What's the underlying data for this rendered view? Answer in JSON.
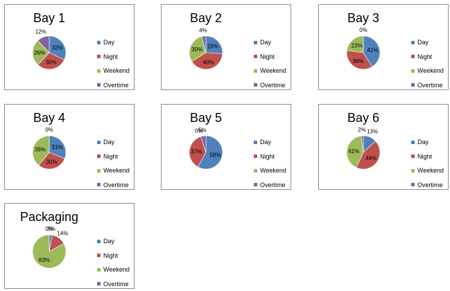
{
  "colors": {
    "Day": "#4f81bd",
    "Night": "#c0504d",
    "Weekend": "#9bbb59",
    "Overtime": "#8064a2"
  },
  "chart_data": [
    {
      "type": "pie",
      "title": "Bay 1",
      "categories": [
        "Day",
        "Night",
        "Weekend",
        "Overtime"
      ],
      "values": [
        32,
        30,
        26,
        12
      ],
      "labels": [
        "32%",
        "30%",
        "26%",
        "12%"
      ]
    },
    {
      "type": "pie",
      "title": "Bay 2",
      "categories": [
        "Day",
        "Night",
        "Weekend",
        "Overtime"
      ],
      "values": [
        26,
        40,
        30,
        4
      ],
      "labels": [
        "26%",
        "40%",
        "30%",
        "4%"
      ]
    },
    {
      "type": "pie",
      "title": "Bay 3",
      "categories": [
        "Day",
        "Night",
        "Weekend",
        "Overtime"
      ],
      "values": [
        41,
        36,
        23,
        0
      ],
      "labels": [
        "41%",
        "36%",
        "23%",
        "0%"
      ]
    },
    {
      "type": "pie",
      "title": "Bay 4",
      "categories": [
        "Day",
        "Night",
        "Weekend",
        "Overtime"
      ],
      "values": [
        31,
        30,
        39,
        0
      ],
      "labels": [
        "31%",
        "30%",
        "39%",
        "0%"
      ]
    },
    {
      "type": "pie",
      "title": "Bay 5",
      "categories": [
        "Day",
        "Night",
        "Weekend",
        "Overtime"
      ],
      "values": [
        58,
        37,
        0,
        5
      ],
      "labels": [
        "58%",
        "37%",
        "0%",
        "5%"
      ]
    },
    {
      "type": "pie",
      "title": "Bay 6",
      "categories": [
        "Day",
        "Night",
        "Weekend",
        "Overtime"
      ],
      "values": [
        13,
        44,
        41,
        2
      ],
      "labels": [
        "13%",
        "44%",
        "41%",
        "2%"
      ]
    },
    {
      "type": "pie",
      "title": "Packaging",
      "categories": [
        "Day",
        "Night",
        "Weekend",
        "Overtime"
      ],
      "values": [
        3,
        14,
        83,
        0
      ],
      "labels": [
        "3%",
        "14%",
        "83%",
        "0%"
      ]
    }
  ]
}
